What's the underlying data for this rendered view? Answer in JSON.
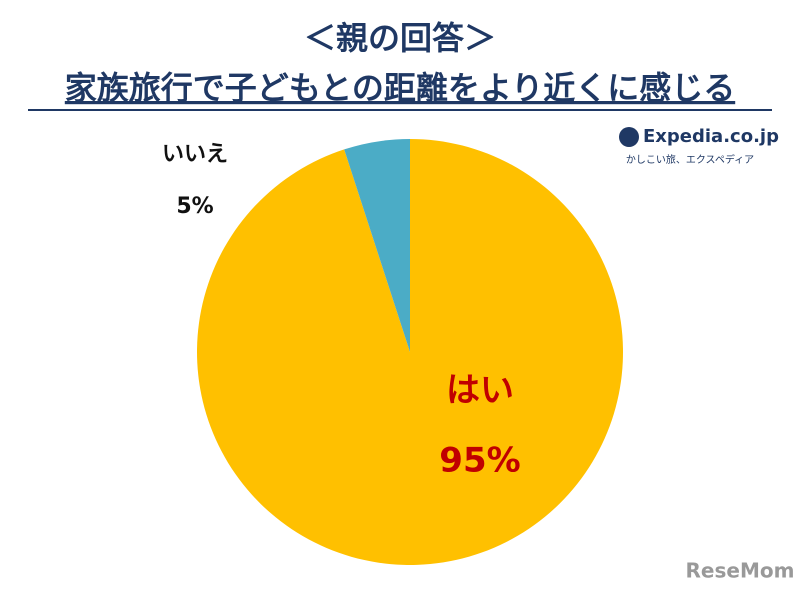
{
  "chart_data": {
    "type": "pie",
    "title": "＜親の回答＞",
    "subtitle": "家族旅行で子どもとの距離をより近くに感じる",
    "categories": [
      "はい",
      "いいえ"
    ],
    "values": [
      95,
      5
    ],
    "value_labels": [
      "95%",
      "5%"
    ],
    "colors": [
      "#ffc000",
      "#4bacc6"
    ],
    "label_colors": [
      "#c00000",
      "#111111"
    ],
    "logo": "Expedia.co.jp",
    "logo_tagline": "かしこい旅、エクスペディア",
    "watermark": "ReseMom"
  }
}
